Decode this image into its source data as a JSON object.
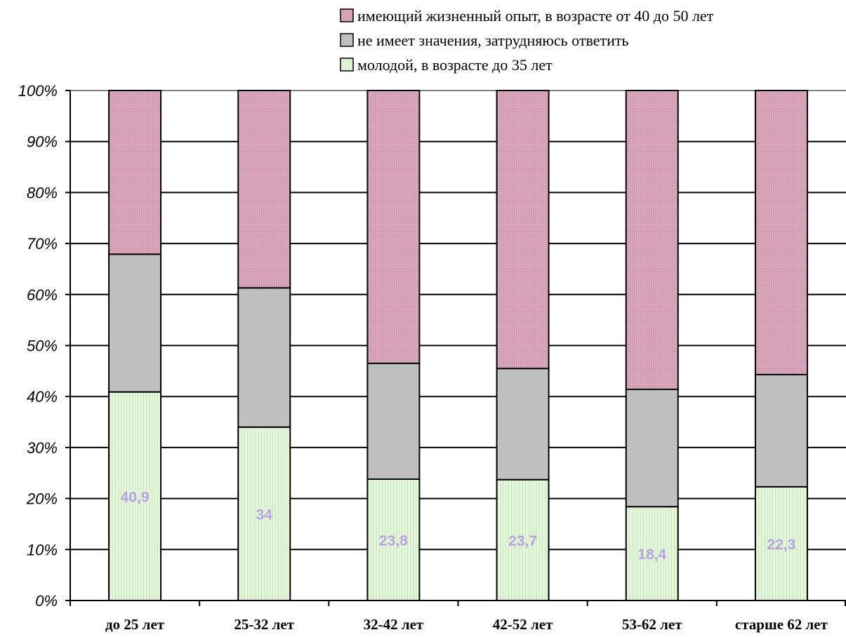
{
  "chart_data": {
    "type": "bar",
    "stacked": true,
    "normalized_to_percent": true,
    "categories": [
      "до 25 лет",
      "25-32 лет",
      "32-42 лет",
      "42-52 лет",
      "53-62 лет",
      "старше 62 лет"
    ],
    "series": [
      {
        "name": "молодой, в возрасте до 35 лет",
        "values": [
          40.9,
          34,
          23.8,
          23.7,
          18.4,
          22.3
        ],
        "labels": [
          "40,9",
          "34",
          "23,8",
          "23,7",
          "18,4",
          "22,3"
        ],
        "color": "#e3f7dc"
      },
      {
        "name": "не имеет значения, затрудняюсь ответить",
        "values": [
          27.0,
          27.3,
          22.7,
          21.8,
          23.0,
          22.0
        ],
        "color": "#c0c0c0"
      },
      {
        "name": "имеющий жизненный опыт, в возрасте от 40 до 50 лет",
        "values": [
          32.1,
          38.7,
          53.5,
          54.5,
          58.6,
          55.7
        ],
        "color": "#d8a4b8"
      }
    ],
    "yticks": [
      "0%",
      "10%",
      "20%",
      "30%",
      "40%",
      "50%",
      "60%",
      "70%",
      "80%",
      "90%",
      "100%"
    ],
    "ylim": [
      0,
      100
    ],
    "grid": true,
    "legend_position": "top-right",
    "legend_order": [
      "имеющий жизненный опыт, в возрасте от 40 до 50 лет",
      "не имеет значения, затрудняюсь ответить",
      "молодой, в возрасте до 35 лет"
    ],
    "label_color": "#b9a0e8"
  }
}
